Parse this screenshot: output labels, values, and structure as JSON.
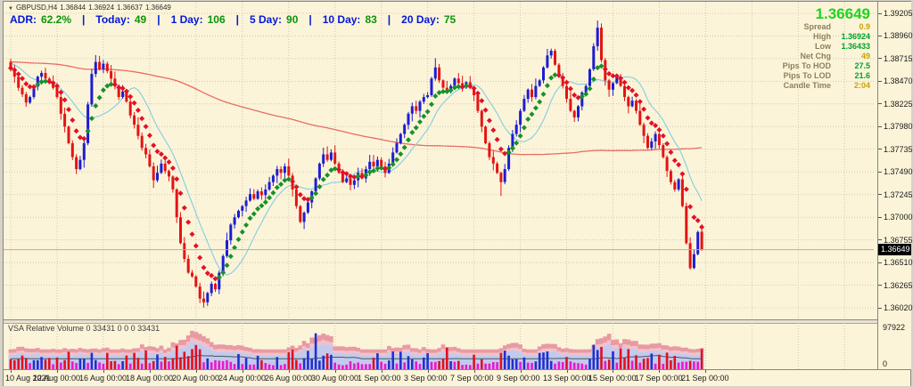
{
  "window": {
    "bg": "#fcf4d9",
    "frame": "#d6d2c8",
    "border": "#8a867c"
  },
  "title_bar": {
    "collapse_icon": "▼",
    "symbol": "GBPUSD,H4",
    "open": "1.36844",
    "high": "1.36924",
    "low": "1.36637",
    "close": "1.36649"
  },
  "adr_row": {
    "separator": "|",
    "label_color": "#0018d8",
    "value_color": "#0b940b",
    "items": [
      {
        "label": "ADR:",
        "value": "62.2%"
      },
      {
        "label": "Today:",
        "value": "49"
      },
      {
        "label": "1 Day:",
        "value": "106"
      },
      {
        "label": "5 Day:",
        "value": "90"
      },
      {
        "label": "10 Day:",
        "value": "83"
      },
      {
        "label": "20 Day:",
        "value": "75"
      }
    ]
  },
  "info_panel": {
    "current_price": "1.36649",
    "price_color": "#1ed41e",
    "label_color": "#8c7f5b",
    "green": "#00a42c",
    "yellow": "#c8a400",
    "rows": [
      {
        "label": "Spread",
        "value": "0.9",
        "tone": "yellow"
      },
      {
        "label": "High",
        "value": "1.36924",
        "tone": "green"
      },
      {
        "label": "Low",
        "value": "1.36433",
        "tone": "green"
      },
      {
        "label": "Net Chg",
        "value": "49",
        "tone": "yellow"
      },
      {
        "label": "Pips To HOD",
        "value": "27.5",
        "tone": "green"
      },
      {
        "label": "Pips To LOD",
        "value": "21.6",
        "tone": "green"
      },
      {
        "label": "Candle Time",
        "value": "2:04",
        "tone": "yellow"
      }
    ]
  },
  "volume_pane": {
    "label": "VSA Relative Volume 0 33431 0 0 0 33431",
    "scale_max": "97922",
    "scale_min": "0"
  },
  "price_axis": {
    "labels": [
      "1.39205",
      "1.38960",
      "1.38715",
      "1.38470",
      "1.38225",
      "1.37980",
      "1.37735",
      "1.37490",
      "1.37245",
      "1.37000",
      "1.36755",
      "1.36510",
      "1.36265",
      "1.36020"
    ],
    "current_price": "1.36649",
    "current_price_value": 1.36649
  },
  "time_axis": {
    "labels": [
      "10 Aug 2021",
      "12 Aug 00:00",
      "16 Aug 00:00",
      "18 Aug 00:00",
      "20 Aug 00:00",
      "24 Aug 00:00",
      "26 Aug 00:00",
      "30 Aug 00:00",
      "1 Sep 00:00",
      "3 Sep 00:00",
      "7 Sep 00:00",
      "9 Sep 00:00",
      "13 Sep 00:00",
      "15 Sep 00:00",
      "17 Sep 00:00",
      "21 Sep 00:00"
    ]
  },
  "chart_data": {
    "type": "candlestick",
    "symbol": "GBPUSD",
    "timeframe": "H4",
    "title": "GBPUSD,H4 1.36844 1.36924 1.36637 1.36649",
    "x_range": [
      "10 Aug 2021",
      "21 Sep 2021"
    ],
    "ylim": [
      1.3602,
      1.39205
    ],
    "bars_per_day": 6,
    "closes": [
      1.3861,
      1.3852,
      1.384,
      1.3833,
      1.3824,
      1.383,
      1.3841,
      1.3852,
      1.3856,
      1.385,
      1.3845,
      1.384,
      1.383,
      1.3812,
      1.3798,
      1.378,
      1.3765,
      1.3752,
      1.3762,
      1.378,
      1.3822,
      1.3855,
      1.3868,
      1.386,
      1.3866,
      1.3858,
      1.385,
      1.3842,
      1.383,
      1.3836,
      1.3825,
      1.381,
      1.38,
      1.3788,
      1.3775,
      1.3768,
      1.3755,
      1.374,
      1.3748,
      1.3758,
      1.375,
      1.3744,
      1.373,
      1.37,
      1.3672,
      1.3655,
      1.364,
      1.3636,
      1.3625,
      1.3612,
      1.3608,
      1.3618,
      1.3628,
      1.3622,
      1.364,
      1.3658,
      1.3675,
      1.3692,
      1.37,
      1.3707,
      1.3712,
      1.3718,
      1.3725,
      1.372,
      1.3728,
      1.3724,
      1.373,
      1.3738,
      1.3745,
      1.3752,
      1.3748,
      1.3755,
      1.3745,
      1.373,
      1.3712,
      1.3695,
      1.3705,
      1.3716,
      1.3728,
      1.3742,
      1.3758,
      1.3768,
      1.3762,
      1.377,
      1.3758,
      1.3748,
      1.3738,
      1.3742,
      1.3735,
      1.374,
      1.3748,
      1.3742,
      1.3752,
      1.376,
      1.3755,
      1.3762,
      1.3755,
      1.3748,
      1.3758,
      1.377,
      1.378,
      1.379,
      1.38,
      1.3812,
      1.382,
      1.3815,
      1.3825,
      1.383,
      1.3832,
      1.385,
      1.3862,
      1.3848,
      1.384,
      1.3836,
      1.3842,
      1.385,
      1.3845,
      1.384,
      1.3846,
      1.384,
      1.3832,
      1.3815,
      1.3798,
      1.378,
      1.3765,
      1.3758,
      1.3748,
      1.3738,
      1.3752,
      1.3775,
      1.379,
      1.38,
      1.3815,
      1.3828,
      1.3838,
      1.383,
      1.3842,
      1.3848,
      1.3862,
      1.3875,
      1.388,
      1.3865,
      1.3852,
      1.3842,
      1.3828,
      1.3815,
      1.3808,
      1.382,
      1.3835,
      1.3842,
      1.386,
      1.3885,
      1.3905,
      1.387,
      1.3848,
      1.3838,
      1.3845,
      1.3852,
      1.3842,
      1.383,
      1.382,
      1.3826,
      1.3815,
      1.38,
      1.3788,
      1.3775,
      1.3782,
      1.379,
      1.3778,
      1.3765,
      1.375,
      1.3738,
      1.373,
      1.3741,
      1.3712,
      1.3672,
      1.3645,
      1.366,
      1.3684,
      1.36649
    ],
    "overrides": {
      "0": {
        "o": 1.3868
      },
      "22": {
        "h": 1.38755
      },
      "50": {
        "l": 1.36022
      },
      "110": {
        "h": 1.3872
      },
      "127": {
        "l": 1.3723
      },
      "152": {
        "h": 1.39127
      },
      "176": {
        "l": 1.36433
      },
      "179": {
        "o": 1.36844,
        "h": 1.36924,
        "l": 1.36637
      }
    },
    "colors": {
      "bull": "#1d1dd2",
      "bear": "#e31414",
      "trail_up": "#169129",
      "trail_down": "#e30f28",
      "ma_fast": "#8ad0e2",
      "ma_slow": "#e96b64",
      "grid": "#cfc8b4",
      "price_line": "#b4b0a4"
    },
    "indicators": {
      "trail_ema_period": 8,
      "ma_fast_period": 13,
      "ma_slow_period": 130
    },
    "volume": {
      "scale_max": 97922,
      "current_value": 33431,
      "seed": 11,
      "day_multipliers": [
        0.75,
        0.7,
        0.95,
        1.0,
        0.8,
        0.85,
        0.9,
        1.15,
        1.1,
        0.85,
        0.7,
        0.65,
        0.9,
        1.25,
        0.6,
        0.75,
        0.85,
        0.8,
        1.1,
        0.6,
        0.9,
        1.0,
        0.85,
        0.9,
        0.75,
        1.15,
        0.95,
        0.8,
        0.85,
        1.2
      ],
      "overrides": {
        "79": 86000,
        "152": 46000,
        "158": 50000
      },
      "low_threshold": 0.75,
      "colors": {
        "up": "#2030d0",
        "down": "#e01020",
        "low": "#ea18cc",
        "band_outer": "#e89aa2",
        "band_mid": "#f2c0ca",
        "band_inner": "#c4c9ee",
        "avg_line": "#3f5a55"
      }
    },
    "layout": {
      "x0": 8,
      "bar_step": 4.33,
      "label_stride": 12,
      "grid_cols": 19,
      "p_top": 1.39205,
      "y_top": 13,
      "p_bottom": 1.3602,
      "y_bottom": 344,
      "pane_right": 979,
      "main_top": 2,
      "main_bottom": 357,
      "vol_top": 361,
      "vol_bottom": 413,
      "vol_height": 46
    }
  }
}
